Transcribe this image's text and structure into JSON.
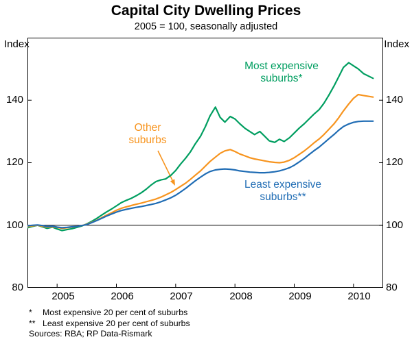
{
  "footnotes": {
    "items": [
      {
        "marker": "*",
        "text": "Most expensive 20 per cent of suburbs"
      },
      {
        "marker": "**",
        "text": "Least expensive 20 per cent of suburbs"
      }
    ],
    "sources": "Sources: RBA; RP Data-Rismark"
  },
  "chart_data": {
    "type": "line",
    "title": "Capital City Dwelling Prices",
    "subtitle": "2005 = 100, seasonally adjusted",
    "y_unit": "Index",
    "xlim": [
      2004.5,
      2010.5
    ],
    "ylim": [
      80,
      160
    ],
    "baseline": 100,
    "yticks": [
      140,
      120,
      100,
      80
    ],
    "xticks": [
      2005,
      2006,
      2007,
      2008,
      2009,
      2010
    ],
    "grid": "off",
    "legend": "inline-labels",
    "x": [
      2004.5,
      2004.58,
      2004.67,
      2004.75,
      2004.83,
      2004.92,
      2005.0,
      2005.08,
      2005.17,
      2005.25,
      2005.33,
      2005.42,
      2005.5,
      2005.58,
      2005.67,
      2005.75,
      2005.83,
      2005.92,
      2006.0,
      2006.08,
      2006.17,
      2006.25,
      2006.33,
      2006.42,
      2006.5,
      2006.58,
      2006.67,
      2006.75,
      2006.83,
      2006.92,
      2007.0,
      2007.08,
      2007.17,
      2007.25,
      2007.33,
      2007.42,
      2007.5,
      2007.58,
      2007.67,
      2007.75,
      2007.83,
      2007.92,
      2008.0,
      2008.08,
      2008.17,
      2008.25,
      2008.33,
      2008.42,
      2008.5,
      2008.58,
      2008.67,
      2008.75,
      2008.83,
      2008.92,
      2009.0,
      2009.08,
      2009.17,
      2009.25,
      2009.33,
      2009.42,
      2009.5,
      2009.58,
      2009.67,
      2009.75,
      2009.83,
      2009.92,
      2010.0,
      2010.08,
      2010.17,
      2010.33
    ],
    "series": [
      {
        "name": "Most expensive suburbs*",
        "label_lines": [
          "Most expensive",
          "suburbs*"
        ],
        "color": "#009E60",
        "values": [
          99.2,
          99.6,
          100.0,
          99.5,
          99.0,
          99.4,
          98.8,
          98.3,
          98.6,
          98.9,
          99.3,
          99.8,
          100.4,
          101.2,
          102.2,
          103.2,
          104.2,
          105.2,
          106.2,
          107.2,
          108.0,
          108.6,
          109.4,
          110.4,
          111.5,
          112.8,
          114.0,
          114.5,
          114.8,
          116.0,
          117.5,
          119.5,
          121.5,
          123.5,
          126.0,
          128.5,
          131.5,
          135.0,
          137.8,
          134.5,
          133.0,
          134.8,
          134.0,
          132.5,
          131.0,
          130.0,
          129.0,
          130.0,
          128.5,
          127.0,
          126.5,
          127.5,
          126.8,
          128.0,
          129.5,
          131.0,
          132.5,
          134.0,
          135.5,
          137.0,
          139.0,
          141.5,
          144.5,
          147.5,
          150.5,
          152.0,
          151.0,
          150.0,
          148.5,
          147.0
        ]
      },
      {
        "name": "Other suburbs",
        "label_lines": [
          "Other",
          "suburbs"
        ],
        "color": "#F7941E",
        "values": [
          99.6,
          99.8,
          100.0,
          99.7,
          99.4,
          99.5,
          99.3,
          99.0,
          99.2,
          99.4,
          99.6,
          99.9,
          100.3,
          100.9,
          101.6,
          102.4,
          103.2,
          104.0,
          104.8,
          105.4,
          105.9,
          106.3,
          106.7,
          107.1,
          107.5,
          107.9,
          108.4,
          109.0,
          109.7,
          110.5,
          111.4,
          112.4,
          113.5,
          114.7,
          116.0,
          117.4,
          118.9,
          120.4,
          121.8,
          123.0,
          123.8,
          124.2,
          123.6,
          122.8,
          122.2,
          121.6,
          121.2,
          120.9,
          120.6,
          120.3,
          120.1,
          120.0,
          120.2,
          120.8,
          121.6,
          122.6,
          123.8,
          125.0,
          126.3,
          127.6,
          129.0,
          130.6,
          132.4,
          134.4,
          136.6,
          138.8,
          140.6,
          141.8,
          141.5,
          141.0
        ]
      },
      {
        "name": "Least expensive suburbs**",
        "label_lines": [
          "Least expensive",
          "suburbs**"
        ],
        "color": "#1F6CB4",
        "values": [
          99.8,
          100.0,
          100.1,
          99.9,
          99.6,
          99.7,
          99.4,
          99.2,
          99.3,
          99.5,
          99.6,
          99.9,
          100.2,
          100.8,
          101.5,
          102.2,
          102.9,
          103.6,
          104.2,
          104.7,
          105.1,
          105.4,
          105.7,
          106.0,
          106.3,
          106.6,
          107.0,
          107.5,
          108.1,
          108.8,
          109.6,
          110.6,
          111.8,
          113.0,
          114.2,
          115.4,
          116.4,
          117.2,
          117.7,
          117.9,
          118.0,
          117.9,
          117.7,
          117.4,
          117.2,
          117.0,
          116.9,
          116.8,
          116.8,
          116.9,
          117.1,
          117.4,
          117.8,
          118.4,
          119.2,
          120.2,
          121.4,
          122.6,
          123.8,
          125.0,
          126.3,
          127.6,
          129.0,
          130.4,
          131.6,
          132.4,
          132.9,
          133.2,
          133.3,
          133.3
        ]
      }
    ]
  }
}
